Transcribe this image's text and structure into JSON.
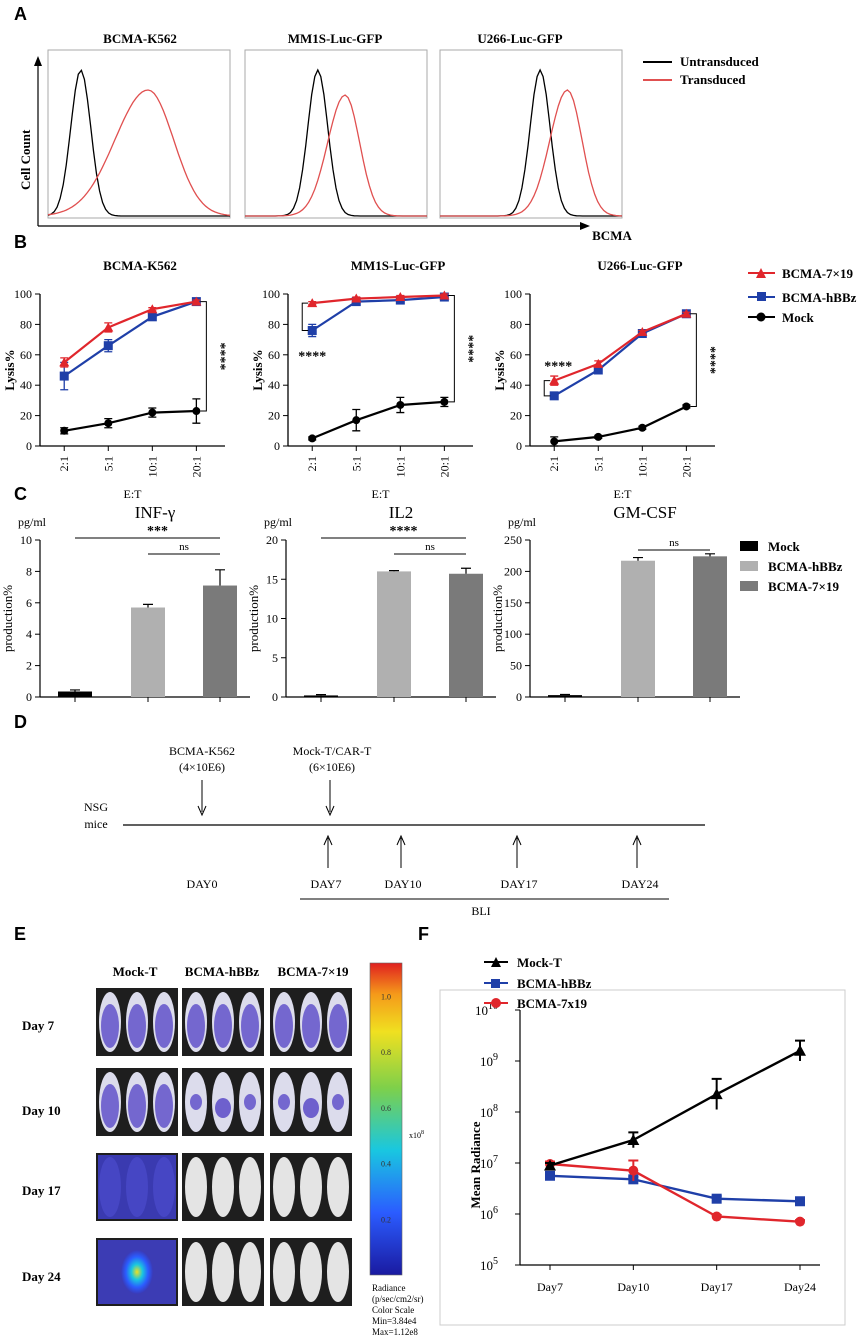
{
  "panel_letters": [
    "A",
    "B",
    "C",
    "D",
    "E",
    "F"
  ],
  "colors": {
    "red": "#e0262c",
    "blue": "#1f3fa8",
    "black": "#000000",
    "gray_light": "#b0b0b0",
    "gray_dark": "#7a7a7a",
    "hist_red": "#e05050"
  },
  "chart_data": [
    {
      "panel": "A",
      "type": "histogram",
      "titles": [
        "BCMA-K562",
        "MM1S-Luc-GFP",
        "U266-Luc-GFP"
      ],
      "xlabel": "BCMA",
      "ylabel": "Cell Count",
      "legend": [
        {
          "name": "Untransduced",
          "color": "#000000"
        },
        {
          "name": "Transduced",
          "color": "#e05050"
        }
      ],
      "subplots": [
        {
          "title": "BCMA-K562",
          "untransduced_peak": 0.18,
          "transduced_peak": 0.55
        },
        {
          "title": "MM1S-Luc-GFP",
          "untransduced_peak": 0.4,
          "transduced_peak": 0.55
        },
        {
          "title": "U266-Luc-GFP",
          "untransduced_peak": 0.55,
          "transduced_peak": 0.7
        }
      ]
    },
    {
      "panel": "B",
      "type": "line",
      "categories": [
        "2:1",
        "5:1",
        "10:1",
        "20:1"
      ],
      "xlabel": "E:T",
      "ylabel": "Lysis%",
      "ylim": [
        0,
        100
      ],
      "yticks": [
        0,
        20,
        40,
        60,
        80,
        100
      ],
      "legend": [
        {
          "name": "BCMA-7×19",
          "color": "#e0262c",
          "marker": "triangle"
        },
        {
          "name": "BCMA-hBBz",
          "color": "#1f3fa8",
          "marker": "square"
        },
        {
          "name": "Mock",
          "color": "#000000",
          "marker": "circle"
        }
      ],
      "subplots": [
        {
          "title": "BCMA-K562",
          "annotations": [
            "****"
          ],
          "series": [
            {
              "name": "BCMA-7×19",
              "values": [
                55,
                78,
                90,
                95
              ],
              "err": [
                3,
                3,
                1,
                1
              ]
            },
            {
              "name": "BCMA-hBBz",
              "values": [
                46,
                66,
                85,
                95
              ],
              "err": [
                9,
                4,
                1,
                1
              ]
            },
            {
              "name": "Mock",
              "values": [
                10,
                15,
                22,
                23
              ],
              "err": [
                2,
                3,
                3,
                8
              ]
            }
          ]
        },
        {
          "title": "MM1S-Luc-GFP",
          "annotations": [
            "****",
            "****"
          ],
          "series": [
            {
              "name": "BCMA-7×19",
              "values": [
                94,
                97,
                98,
                99
              ],
              "err": [
                1,
                1,
                1,
                1
              ]
            },
            {
              "name": "BCMA-hBBz",
              "values": [
                76,
                95,
                96,
                98
              ],
              "err": [
                4,
                1,
                1,
                1
              ]
            },
            {
              "name": "Mock",
              "values": [
                5,
                17,
                27,
                29
              ],
              "err": [
                1,
                7,
                5,
                3
              ]
            }
          ]
        },
        {
          "title": "U266-Luc-GFP",
          "annotations": [
            "****",
            "****"
          ],
          "series": [
            {
              "name": "BCMA-7×19",
              "values": [
                43,
                54,
                75,
                87
              ],
              "err": [
                3,
                2,
                1,
                1
              ]
            },
            {
              "name": "BCMA-hBBz",
              "values": [
                33,
                50,
                74,
                87
              ],
              "err": [
                1,
                2,
                1,
                1
              ]
            },
            {
              "name": "Mock",
              "values": [
                3,
                6,
                12,
                26
              ],
              "err": [
                3,
                1,
                1,
                1
              ]
            }
          ]
        }
      ]
    },
    {
      "panel": "C",
      "type": "bar",
      "ylabel": "production%",
      "unit": "pg/ml",
      "legend": [
        {
          "name": "Mock",
          "color": "#000000"
        },
        {
          "name": "BCMA-hBBz",
          "color": "#b0b0b0"
        },
        {
          "name": "BCMA-7×19",
          "color": "#7a7a7a"
        }
      ],
      "subplots": [
        {
          "title": "INF-γ",
          "ylim": [
            0,
            10
          ],
          "yticks": [
            0,
            2,
            4,
            6,
            8,
            10
          ],
          "values": [
            0.35,
            5.7,
            7.1
          ],
          "err": [
            0.1,
            0.2,
            1.0
          ],
          "annotations": [
            "***",
            "ns"
          ]
        },
        {
          "title": "IL2",
          "ylim": [
            0,
            20
          ],
          "yticks": [
            0,
            5,
            10,
            15,
            20
          ],
          "values": [
            0.2,
            16,
            15.7
          ],
          "err": [
            0.1,
            0.1,
            0.7
          ],
          "annotations": [
            "****",
            "ns"
          ]
        },
        {
          "title": "GM-CSF",
          "ylim": [
            0,
            250
          ],
          "yticks": [
            0,
            50,
            100,
            150,
            200,
            250
          ],
          "values": [
            3,
            217,
            224
          ],
          "err": [
            1,
            5,
            4
          ],
          "annotations": [
            "ns"
          ]
        }
      ]
    },
    {
      "panel": "D",
      "type": "timeline",
      "mice": [
        "NSG",
        "mice"
      ],
      "injections": [
        {
          "label": [
            "BCMA-K562",
            "(4×10E6)"
          ],
          "day": 0
        },
        {
          "label": [
            "Mock-T/CAR-T",
            "(6×10E6)"
          ],
          "day": 7
        }
      ],
      "days": [
        "DAY0",
        "DAY7",
        "DAY10",
        "DAY17",
        "DAY24"
      ],
      "bli_label": "BLI"
    },
    {
      "panel": "E",
      "type": "image_grid",
      "columns": [
        "Mock-T",
        "BCMA-hBBz",
        "BCMA-7×19"
      ],
      "rows": [
        "Day 7",
        "Day 10",
        "Day 17",
        "Day 24"
      ],
      "colorbar_ticks": [
        "1.0",
        "0.8",
        "0.6",
        "0.4",
        "0.2"
      ],
      "colorbar_unit": "x10",
      "colorbar_unit_exp": "8",
      "caption": [
        "Radiance",
        "(p/sec/cm2/sr)",
        "Color Scale",
        "Min=3.84e4",
        "Max=1.12e8"
      ]
    },
    {
      "panel": "F",
      "type": "line",
      "yscale": "log",
      "ylabel": "Mean Radiance",
      "categories": [
        "Day7",
        "Day10",
        "Day17",
        "Day24"
      ],
      "ylim": [
        5,
        10
      ],
      "ytick_labels": [
        "10",
        "10",
        "10",
        "10",
        "10",
        "10"
      ],
      "ytick_exps": [
        "5",
        "6",
        "7",
        "8",
        "9",
        "10"
      ],
      "series": [
        {
          "name": "Mock-T",
          "color": "#000000",
          "marker": "triangle",
          "values": [
            6.95,
            7.45,
            8.35,
            9.2
          ],
          "err": [
            0.05,
            0.15,
            0.3,
            0.2
          ]
        },
        {
          "name": "BCMA-hBBz",
          "color": "#1f3fa8",
          "marker": "square",
          "values": [
            6.75,
            6.68,
            6.3,
            6.25
          ],
          "err": [
            0.05,
            0.05,
            0.05,
            0.05
          ]
        },
        {
          "name": "BCMA-7x19",
          "color": "#e0262c",
          "marker": "circle",
          "values": [
            6.98,
            6.85,
            5.95,
            5.85
          ],
          "err": [
            0.05,
            0.2,
            0.03,
            0.03
          ]
        }
      ]
    }
  ]
}
